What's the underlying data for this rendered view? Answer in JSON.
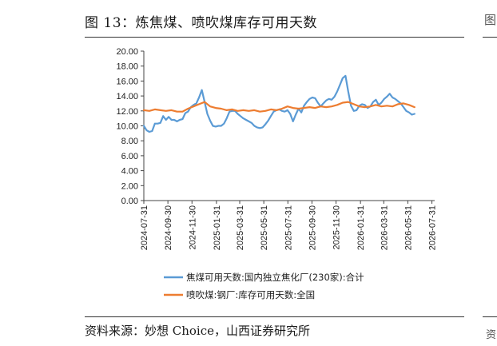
{
  "figure": {
    "title": "图 13：炼焦煤、喷吹煤库存可用天数",
    "source": "资料来源：妙想 Choice，山西证券研究所",
    "right_edge_glyphs": [
      "图",
      "资"
    ]
  },
  "chart_data": {
    "type": "line",
    "title": "",
    "xlabel": "",
    "ylabel": "",
    "ylim": [
      0,
      20
    ],
    "yticks": [
      "0.00",
      "2.00",
      "4.00",
      "6.00",
      "8.00",
      "10.00",
      "12.00",
      "14.00",
      "16.00",
      "18.00",
      "20.00"
    ],
    "xlim": [
      "2024-07-31",
      "2026-08-07"
    ],
    "xticks": [
      "2024-07-31",
      "2024-09-30",
      "2024-11-30",
      "2025-01-31",
      "2025-03-31",
      "2025-05-31",
      "2025-07-31",
      "2025-09-30",
      "2025-11-30",
      "2026-01-31",
      "2026-03-31",
      "2026-05-31",
      "2026-07-31"
    ],
    "grid": false,
    "legend_position": "bottom",
    "series": [
      {
        "name": "焦煤可用天数:国内独立焦化厂(230家):合计",
        "color": "#5b9bd5",
        "points": [
          [
            "2024-07-31",
            10.0
          ],
          [
            "2024-08-07",
            9.4
          ],
          [
            "2024-08-14",
            9.2
          ],
          [
            "2024-08-21",
            9.3
          ],
          [
            "2024-08-28",
            10.3
          ],
          [
            "2024-09-04",
            10.3
          ],
          [
            "2024-09-11",
            10.4
          ],
          [
            "2024-09-18",
            11.3
          ],
          [
            "2024-09-25",
            10.8
          ],
          [
            "2024-10-02",
            11.2
          ],
          [
            "2024-10-09",
            10.8
          ],
          [
            "2024-10-16",
            10.8
          ],
          [
            "2024-10-23",
            10.6
          ],
          [
            "2024-10-30",
            10.8
          ],
          [
            "2024-11-06",
            10.9
          ],
          [
            "2024-11-13",
            11.7
          ],
          [
            "2024-11-20",
            11.9
          ],
          [
            "2024-11-27",
            12.5
          ],
          [
            "2024-12-04",
            12.8
          ],
          [
            "2024-12-11",
            13.0
          ],
          [
            "2024-12-18",
            13.8
          ],
          [
            "2024-12-25",
            14.8
          ],
          [
            "2025-01-01",
            13.2
          ],
          [
            "2025-01-08",
            11.6
          ],
          [
            "2025-01-15",
            10.7
          ],
          [
            "2025-01-22",
            10.0
          ],
          [
            "2025-01-29",
            9.9
          ],
          [
            "2025-02-05",
            10.0
          ],
          [
            "2025-02-12",
            10.0
          ],
          [
            "2025-02-19",
            10.3
          ],
          [
            "2025-02-26",
            11.0
          ],
          [
            "2025-03-05",
            11.9
          ],
          [
            "2025-03-12",
            12.0
          ],
          [
            "2025-03-19",
            12.0
          ],
          [
            "2025-03-26",
            11.6
          ],
          [
            "2025-04-02",
            11.3
          ],
          [
            "2025-04-09",
            11.0
          ],
          [
            "2025-04-16",
            10.8
          ],
          [
            "2025-04-23",
            10.6
          ],
          [
            "2025-04-30",
            10.4
          ],
          [
            "2025-05-07",
            10.0
          ],
          [
            "2025-05-14",
            9.8
          ],
          [
            "2025-05-21",
            9.7
          ],
          [
            "2025-05-28",
            9.8
          ],
          [
            "2025-06-04",
            10.2
          ],
          [
            "2025-06-11",
            10.7
          ],
          [
            "2025-06-18",
            11.3
          ],
          [
            "2025-06-25",
            11.9
          ],
          [
            "2025-07-02",
            12.1
          ],
          [
            "2025-07-09",
            12.2
          ],
          [
            "2025-07-16",
            12.0
          ],
          [
            "2025-07-23",
            11.9
          ],
          [
            "2025-07-30",
            12.1
          ],
          [
            "2025-08-06",
            11.6
          ],
          [
            "2025-08-13",
            10.6
          ],
          [
            "2025-08-20",
            11.5
          ],
          [
            "2025-08-27",
            12.3
          ],
          [
            "2025-09-03",
            11.8
          ],
          [
            "2025-09-10",
            12.7
          ],
          [
            "2025-09-17",
            13.2
          ],
          [
            "2025-09-24",
            13.6
          ],
          [
            "2025-10-01",
            13.8
          ],
          [
            "2025-10-08",
            13.7
          ],
          [
            "2025-10-15",
            13.1
          ],
          [
            "2025-10-22",
            12.6
          ],
          [
            "2025-10-29",
            13.0
          ],
          [
            "2025-11-05",
            13.4
          ],
          [
            "2025-11-12",
            13.6
          ],
          [
            "2025-11-19",
            13.5
          ],
          [
            "2025-11-26",
            13.9
          ],
          [
            "2025-12-03",
            14.6
          ],
          [
            "2025-12-10",
            15.5
          ],
          [
            "2025-12-17",
            16.4
          ],
          [
            "2025-12-24",
            16.7
          ],
          [
            "2025-12-31",
            14.6
          ],
          [
            "2026-01-07",
            12.7
          ],
          [
            "2026-01-14",
            12.0
          ],
          [
            "2026-01-21",
            12.1
          ],
          [
            "2026-01-28",
            12.7
          ],
          [
            "2026-02-04",
            12.9
          ],
          [
            "2026-02-11",
            12.8
          ],
          [
            "2026-02-18",
            12.4
          ],
          [
            "2026-02-25",
            12.6
          ],
          [
            "2026-03-04",
            13.2
          ],
          [
            "2026-03-11",
            13.5
          ],
          [
            "2026-03-18",
            12.8
          ],
          [
            "2026-03-25",
            13.1
          ],
          [
            "2026-04-01",
            13.6
          ],
          [
            "2026-04-08",
            13.9
          ],
          [
            "2026-04-15",
            14.3
          ],
          [
            "2026-04-22",
            13.8
          ],
          [
            "2026-04-29",
            13.6
          ],
          [
            "2026-05-06",
            13.3
          ],
          [
            "2026-05-13",
            13.0
          ],
          [
            "2026-05-20",
            12.5
          ],
          [
            "2026-05-27",
            12.0
          ],
          [
            "2026-06-03",
            11.8
          ],
          [
            "2026-06-10",
            11.5
          ],
          [
            "2026-06-17",
            11.6
          ]
        ]
      },
      {
        "name": "喷吹煤:钢厂:库存可用天数:全国",
        "color": "#ed7d31",
        "points": [
          [
            "2024-07-31",
            12.1
          ],
          [
            "2024-08-14",
            12.0
          ],
          [
            "2024-08-28",
            12.2
          ],
          [
            "2024-09-11",
            12.1
          ],
          [
            "2024-09-25",
            12.0
          ],
          [
            "2024-10-09",
            12.1
          ],
          [
            "2024-10-23",
            11.9
          ],
          [
            "2024-11-06",
            11.9
          ],
          [
            "2024-11-20",
            12.3
          ],
          [
            "2024-12-04",
            12.6
          ],
          [
            "2024-12-18",
            12.9
          ],
          [
            "2025-01-01",
            13.2
          ],
          [
            "2025-01-15",
            12.6
          ],
          [
            "2025-01-29",
            12.4
          ],
          [
            "2025-02-12",
            12.3
          ],
          [
            "2025-02-26",
            12.1
          ],
          [
            "2025-03-12",
            12.2
          ],
          [
            "2025-03-26",
            12.0
          ],
          [
            "2025-04-09",
            12.1
          ],
          [
            "2025-04-23",
            12.0
          ],
          [
            "2025-05-07",
            12.1
          ],
          [
            "2025-05-21",
            11.9
          ],
          [
            "2025-06-04",
            12.0
          ],
          [
            "2025-06-18",
            12.2
          ],
          [
            "2025-07-02",
            12.1
          ],
          [
            "2025-07-16",
            12.3
          ],
          [
            "2025-07-30",
            12.6
          ],
          [
            "2025-08-13",
            12.4
          ],
          [
            "2025-08-27",
            12.3
          ],
          [
            "2025-09-10",
            12.4
          ],
          [
            "2025-09-24",
            12.5
          ],
          [
            "2025-10-08",
            12.4
          ],
          [
            "2025-10-22",
            12.6
          ],
          [
            "2025-11-05",
            12.5
          ],
          [
            "2025-11-19",
            12.6
          ],
          [
            "2025-12-03",
            12.8
          ],
          [
            "2025-12-17",
            13.1
          ],
          [
            "2025-12-31",
            13.2
          ],
          [
            "2026-01-14",
            12.9
          ],
          [
            "2026-01-28",
            12.6
          ],
          [
            "2026-02-11",
            12.5
          ],
          [
            "2026-02-25",
            12.6
          ],
          [
            "2026-03-11",
            12.8
          ],
          [
            "2026-03-25",
            12.6
          ],
          [
            "2026-04-08",
            12.7
          ],
          [
            "2026-04-22",
            12.6
          ],
          [
            "2026-05-06",
            12.9
          ],
          [
            "2026-05-20",
            13.0
          ],
          [
            "2026-06-03",
            12.8
          ],
          [
            "2026-06-17",
            12.5
          ]
        ]
      }
    ]
  }
}
